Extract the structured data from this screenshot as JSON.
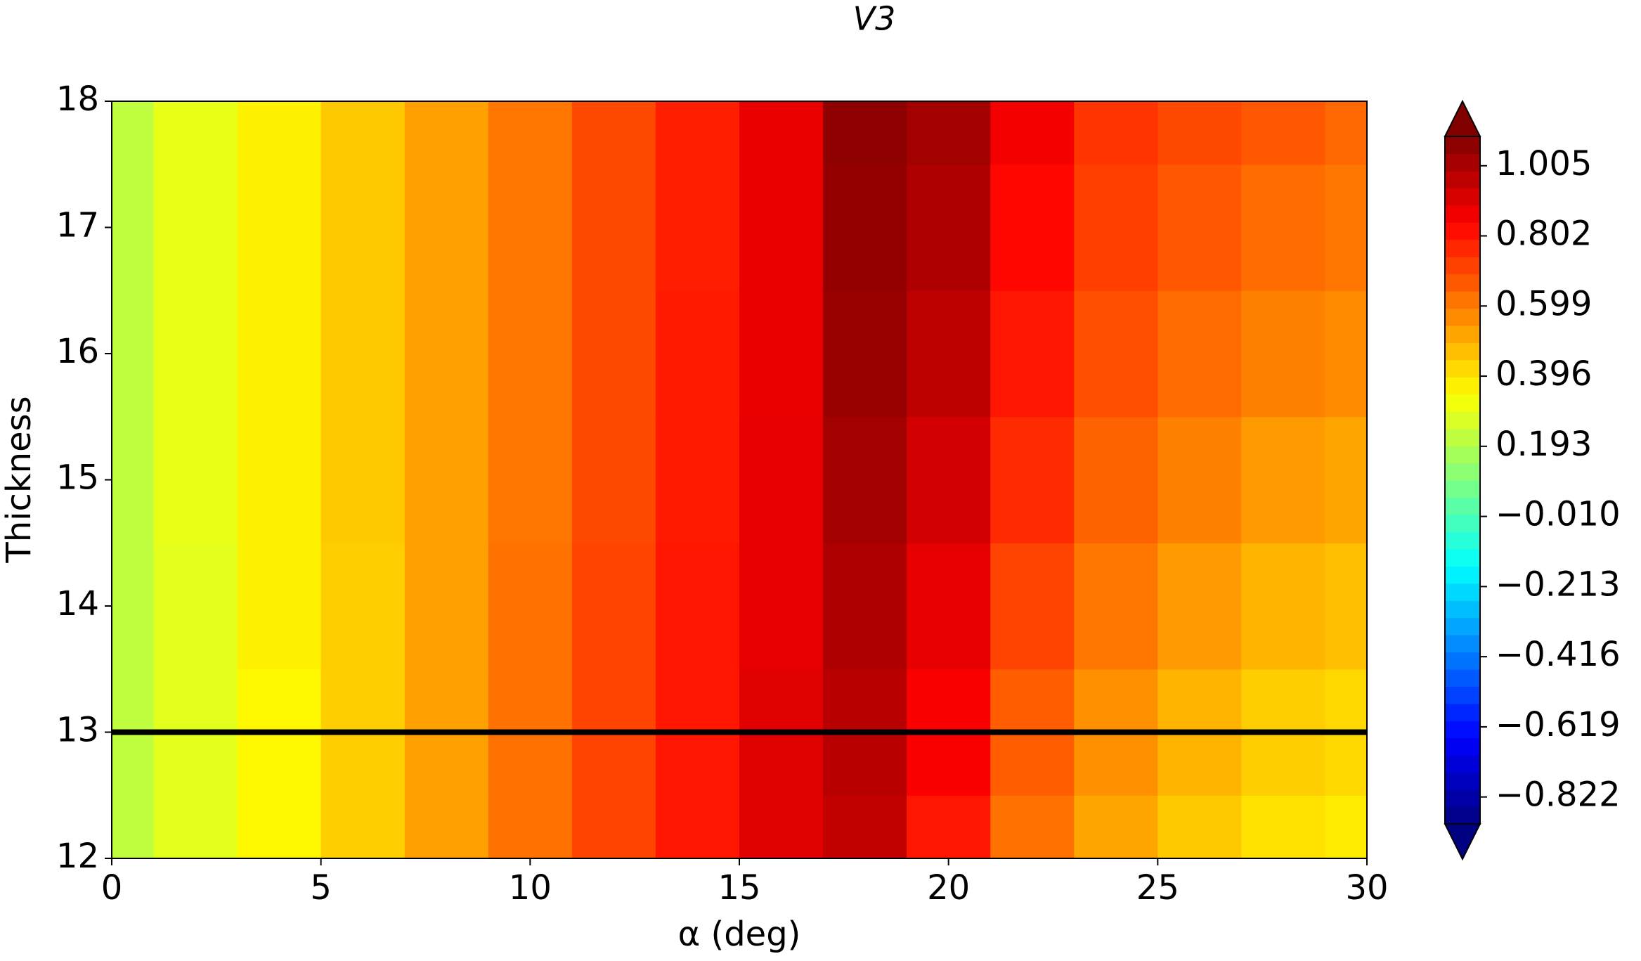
{
  "chart_data": {
    "type": "contour",
    "title": "V3",
    "xlabel": "α (deg)",
    "ylabel": "Thickness",
    "x": [
      0,
      2,
      4,
      6,
      8,
      10,
      12,
      14,
      16,
      18,
      20,
      22,
      24,
      26,
      28,
      30
    ],
    "y": [
      12,
      13,
      14,
      15,
      16,
      17,
      18
    ],
    "z": [
      [
        0.22,
        0.29,
        0.36,
        0.44,
        0.53,
        0.62,
        0.71,
        0.8,
        0.9,
        0.96,
        0.8,
        0.62,
        0.52,
        0.45,
        0.4,
        0.38
      ],
      [
        0.22,
        0.29,
        0.36,
        0.44,
        0.53,
        0.62,
        0.71,
        0.8,
        0.9,
        0.98,
        0.85,
        0.66,
        0.56,
        0.49,
        0.44,
        0.42
      ],
      [
        0.22,
        0.29,
        0.37,
        0.44,
        0.53,
        0.62,
        0.71,
        0.8,
        0.89,
        1.0,
        0.89,
        0.71,
        0.61,
        0.54,
        0.49,
        0.47
      ],
      [
        0.22,
        0.3,
        0.37,
        0.45,
        0.53,
        0.61,
        0.7,
        0.79,
        0.89,
        1.02,
        0.93,
        0.76,
        0.65,
        0.59,
        0.54,
        0.52
      ],
      [
        0.22,
        0.3,
        0.37,
        0.45,
        0.53,
        0.61,
        0.7,
        0.79,
        0.88,
        1.04,
        0.97,
        0.8,
        0.69,
        0.63,
        0.59,
        0.57
      ],
      [
        0.22,
        0.3,
        0.37,
        0.45,
        0.53,
        0.61,
        0.7,
        0.78,
        0.88,
        1.05,
        1.0,
        0.83,
        0.72,
        0.67,
        0.63,
        0.61
      ],
      [
        0.22,
        0.3,
        0.37,
        0.45,
        0.53,
        0.61,
        0.7,
        0.78,
        0.88,
        1.06,
        1.02,
        0.86,
        0.74,
        0.7,
        0.67,
        0.64
      ]
    ],
    "xlim": [
      0,
      30
    ],
    "xticks": [
      0,
      5,
      10,
      15,
      20,
      25,
      30
    ],
    "ylim": [
      12,
      18
    ],
    "yticks": [
      12,
      13,
      14,
      15,
      16,
      17,
      18
    ],
    "colormap": "jet",
    "clim": [
      -0.9,
      1.09
    ],
    "colorbar_ticks": [
      {
        "value": -0.822,
        "label": "−0.822"
      },
      {
        "value": -0.619,
        "label": "−0.619"
      },
      {
        "value": -0.416,
        "label": "−0.416"
      },
      {
        "value": -0.213,
        "label": "−0.213"
      },
      {
        "value": -0.01,
        "label": "−0.010"
      },
      0.193,
      0.396,
      0.599,
      0.802,
      1.005
    ],
    "hline": 13,
    "hline_color": "#000000"
  }
}
